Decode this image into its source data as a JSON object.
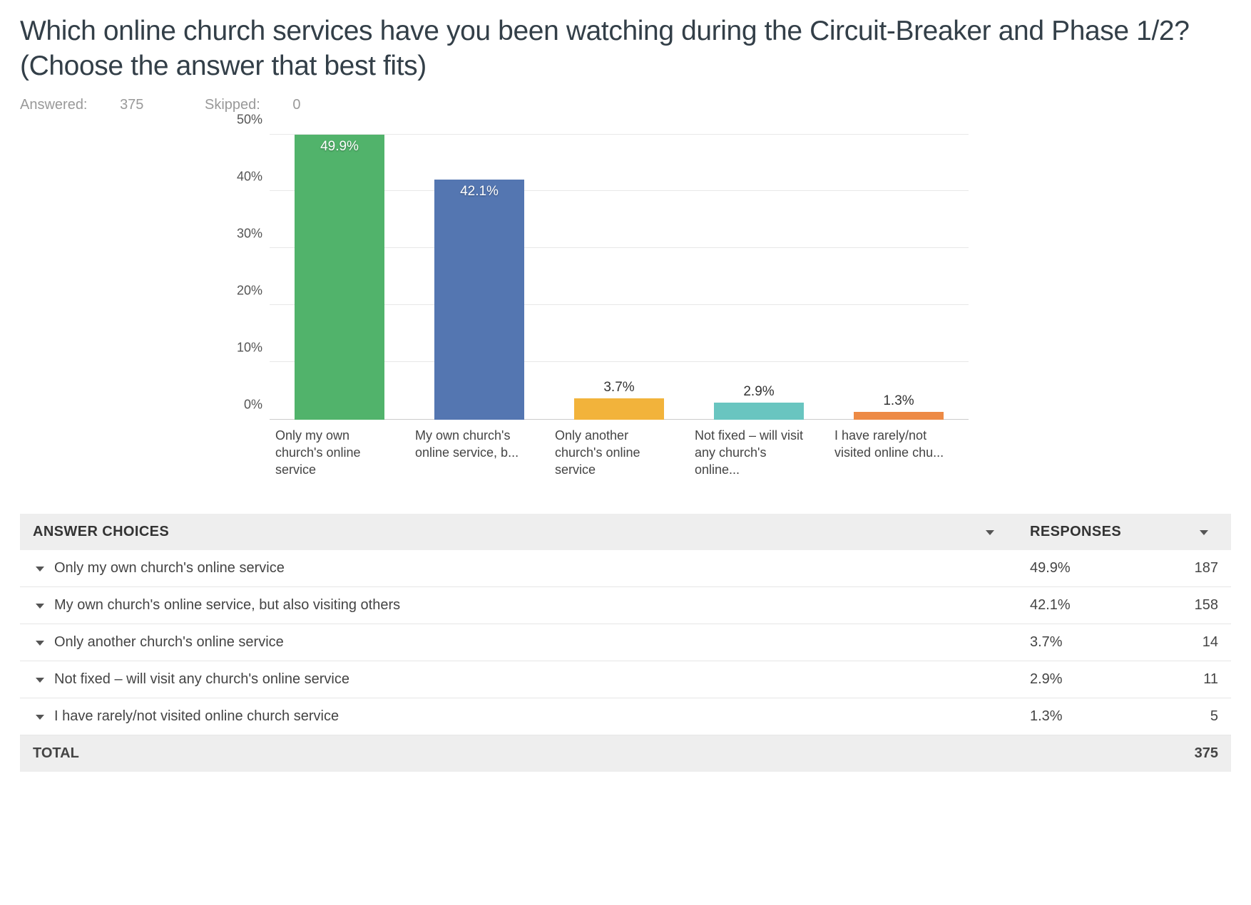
{
  "question": "Which online church services have you been watching during the Circuit-Breaker and Phase 1/2? (Choose the answer that best fits)",
  "meta": {
    "answered_label": "Answered:",
    "answered": 375,
    "skipped_label": "Skipped:",
    "skipped": 0
  },
  "chart": {
    "type": "bar",
    "ylim": [
      0,
      50
    ],
    "ytick_step": 10,
    "grid_color": "#e8e8e8",
    "axis_color": "#cccccc",
    "background_color": "#ffffff",
    "label_fontsize": 18,
    "value_fontsize": 19,
    "bar_width": 0.64,
    "bars": [
      {
        "short_label": "Only my own church's online service",
        "value": 49.9,
        "value_text": "49.9%",
        "color": "#51b36b",
        "label_inside": true
      },
      {
        "short_label": "My own church's online service, b...",
        "value": 42.1,
        "value_text": "42.1%",
        "color": "#5476b1",
        "label_inside": true
      },
      {
        "short_label": "Only another church's online service",
        "value": 3.7,
        "value_text": "3.7%",
        "color": "#f2b33b",
        "label_inside": false
      },
      {
        "short_label": "Not fixed – will visit any church's online...",
        "value": 2.9,
        "value_text": "2.9%",
        "color": "#69c5c0",
        "label_inside": false
      },
      {
        "short_label": "I have rarely/not visited online chu...",
        "value": 1.3,
        "value_text": "1.3%",
        "color": "#ed8a45",
        "label_inside": false
      }
    ]
  },
  "table": {
    "headers": {
      "choices": "ANSWER CHOICES",
      "responses": "RESPONSES"
    },
    "rows": [
      {
        "label": "Only my own church's online service",
        "pct": "49.9%",
        "count": 187
      },
      {
        "label": "My own church's online service, but also visiting others",
        "pct": "42.1%",
        "count": 158
      },
      {
        "label": "Only another church's online service",
        "pct": "3.7%",
        "count": 14
      },
      {
        "label": "Not fixed – will visit any church's online service",
        "pct": "2.9%",
        "count": 11
      },
      {
        "label": "I have rarely/not visited online church service",
        "pct": "1.3%",
        "count": 5
      }
    ],
    "total_label": "TOTAL",
    "total": 375
  }
}
